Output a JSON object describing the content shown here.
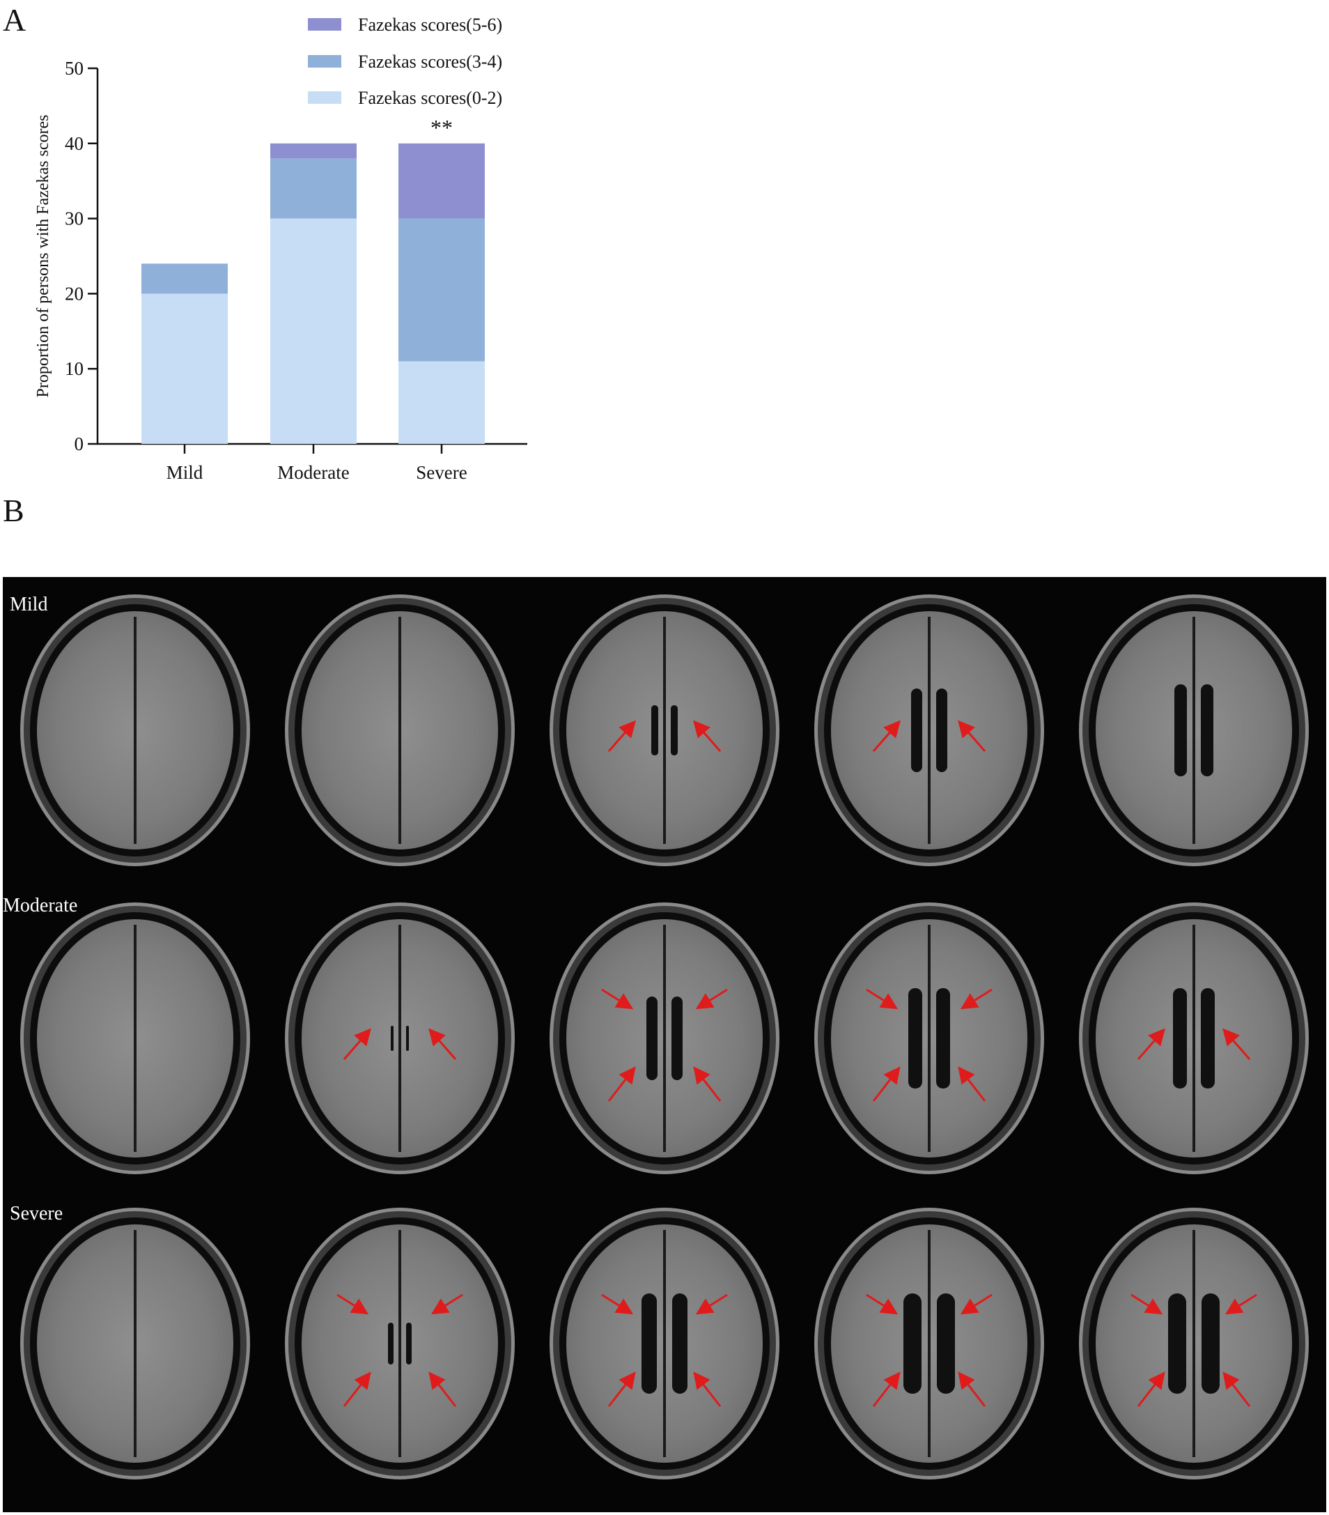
{
  "panels": {
    "a": "A",
    "b": "B"
  },
  "chart_data": {
    "type": "bar",
    "stacked": true,
    "categories": [
      "Mild",
      "Moderate",
      "Severe"
    ],
    "series": [
      {
        "name": "Fazekas scores(0-2)",
        "values": [
          20,
          30,
          11
        ],
        "color": "#c7ddf6"
      },
      {
        "name": "Fazekas scores(3-4)",
        "values": [
          4,
          8,
          19
        ],
        "color": "#8fb0d8"
      },
      {
        "name": "Fazekas scores(5-6)",
        "values": [
          0,
          2,
          10
        ],
        "color": "#8e8fd0"
      }
    ],
    "ylabel": "Proportion of persons with Fazekas scores",
    "ylim": [
      0,
      50
    ],
    "yticks": [
      0,
      10,
      20,
      30,
      40,
      50
    ],
    "legend_position": "top-right",
    "legend_order": [
      2,
      1,
      0
    ],
    "annotations": [
      {
        "category": "Severe",
        "text": "**"
      }
    ]
  },
  "mri": {
    "rows": [
      {
        "label": "Mild"
      },
      {
        "label": "Moderate"
      },
      {
        "label": "Severe"
      }
    ],
    "arrow_color": "#e01b1b"
  }
}
